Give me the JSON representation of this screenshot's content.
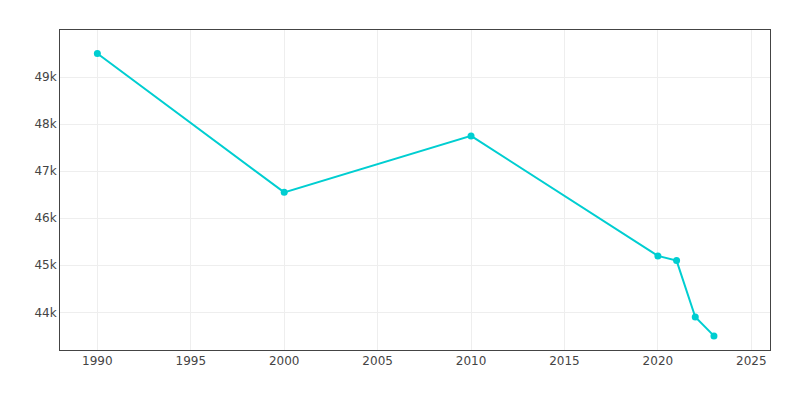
{
  "chart_data": {
    "type": "line",
    "x": [
      1990,
      2000,
      2010,
      2020,
      2021,
      2022,
      2023
    ],
    "values": [
      49500,
      46550,
      47750,
      45200,
      45100,
      43900,
      43500
    ],
    "color": "#00CED1",
    "marker": "circle",
    "xlim": [
      1988,
      2026
    ],
    "xticks": [
      1990,
      1995,
      2000,
      2005,
      2010,
      2015,
      2020,
      2025
    ],
    "ylim": [
      43200,
      50000
    ],
    "yticks": [
      {
        "value": 44000,
        "label": "44k"
      },
      {
        "value": 45000,
        "label": "45k"
      },
      {
        "value": 46000,
        "label": "46k"
      },
      {
        "value": 47000,
        "label": "47k"
      },
      {
        "value": 48000,
        "label": "48k"
      },
      {
        "value": 49000,
        "label": "49k"
      }
    ],
    "grid": true
  }
}
